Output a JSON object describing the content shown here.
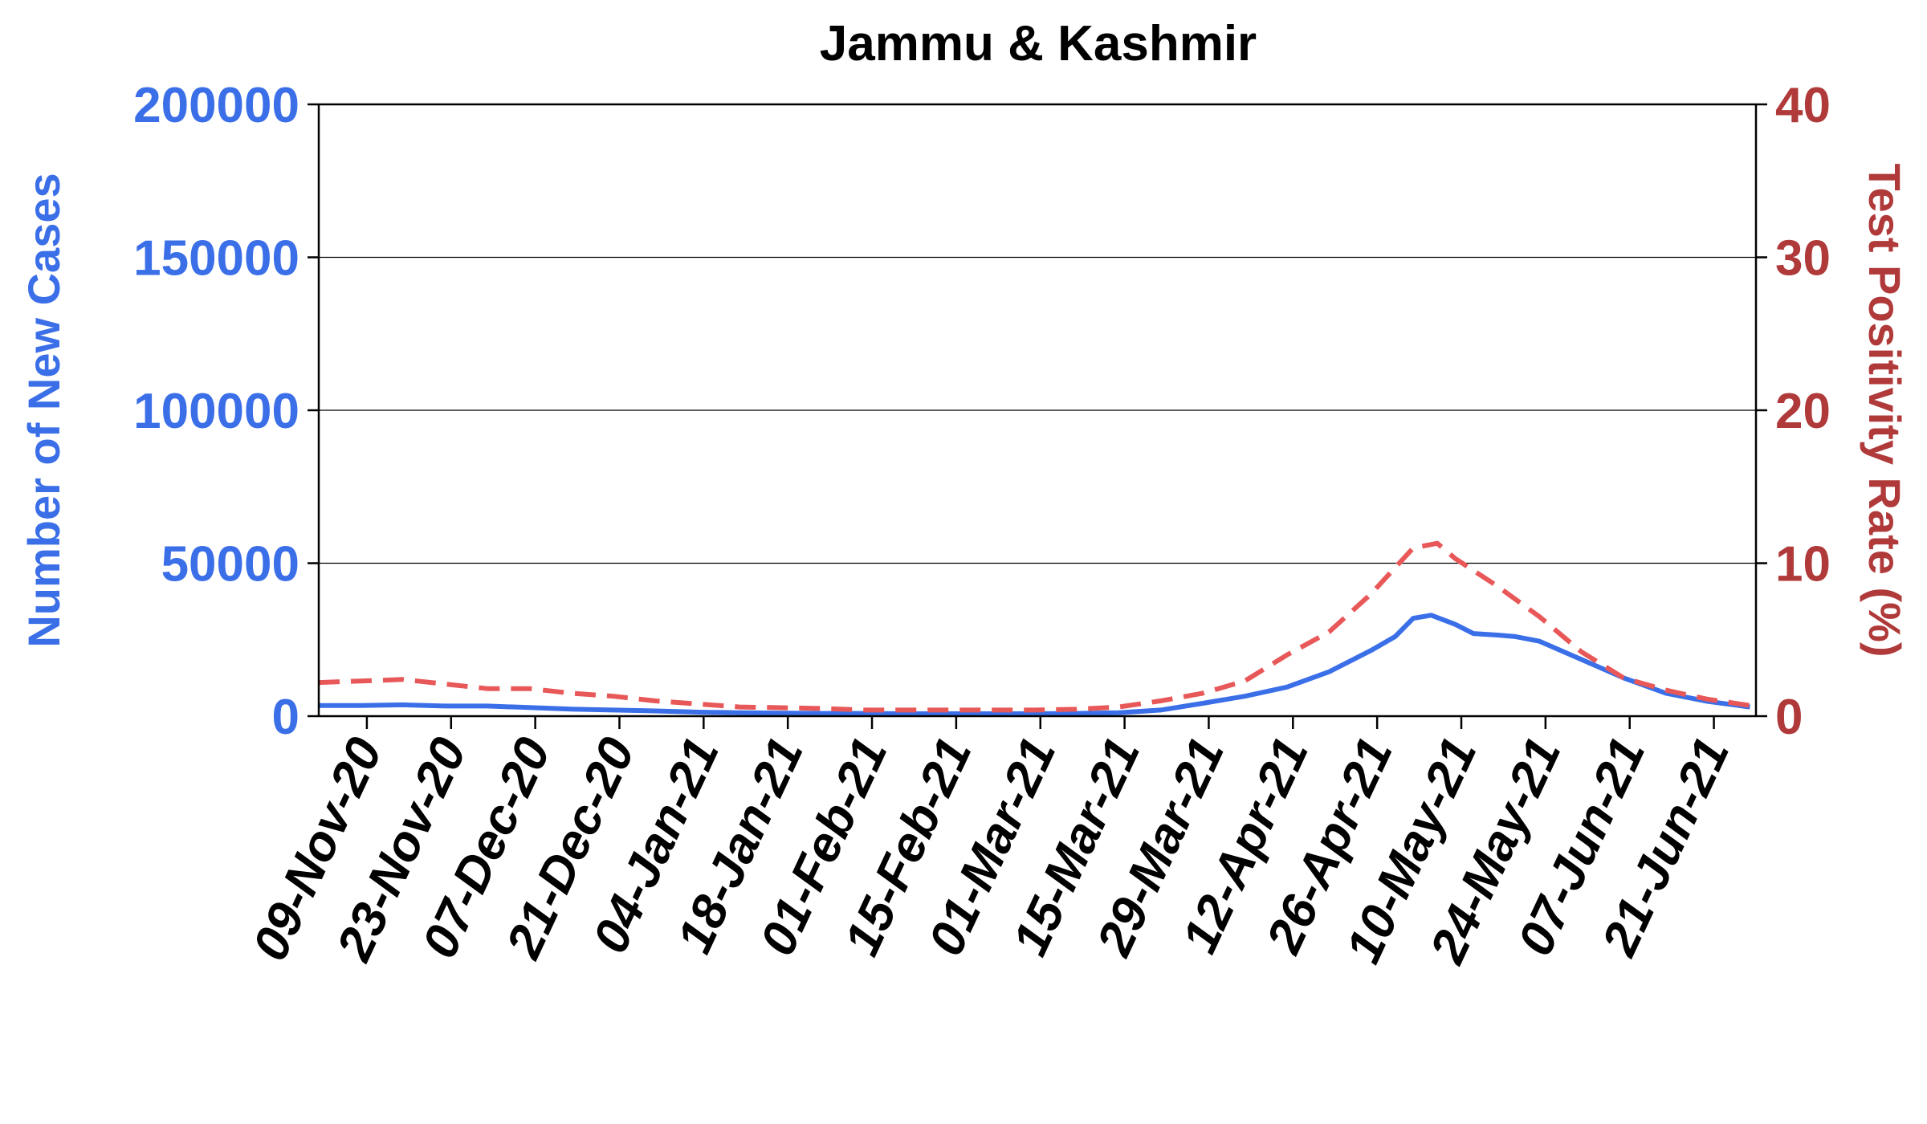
{
  "chart_data": {
    "type": "line",
    "title": "Jammu & Kashmir",
    "ylabel": "Number of New Cases",
    "y2label": "Test Positivity Rate (%)",
    "ylim": [
      0,
      200000
    ],
    "y2lim": [
      0,
      40
    ],
    "yticks": [
      "0",
      "50000",
      "100000",
      "150000",
      "200000"
    ],
    "y2ticks": [
      "0",
      "10",
      "20",
      "30",
      "40"
    ],
    "xticks": [
      "09-Nov-20",
      "23-Nov-20",
      "07-Dec-20",
      "21-Dec-20",
      "04-Jan-21",
      "18-Jan-21",
      "01-Feb-21",
      "15-Feb-21",
      "01-Mar-21",
      "15-Mar-21",
      "29-Mar-21",
      "12-Apr-21",
      "26-Apr-21",
      "10-May-21",
      "24-May-21",
      "07-Jun-21",
      "21-Jun-21"
    ],
    "grid": "horizontal",
    "colors": {
      "cases": "#3b6fe8",
      "tpr": "#e85858",
      "left_axis": "#3b6fe8",
      "right_axis": "#b03a3a"
    },
    "series": [
      {
        "axis": "left",
        "style": "solid",
        "x": [
          "2020-11-01",
          "2020-11-08",
          "2020-11-15",
          "2020-11-22",
          "2020-11-29",
          "2020-12-06",
          "2020-12-13",
          "2020-12-20",
          "2020-12-27",
          "2021-01-03",
          "2021-01-10",
          "2021-01-17",
          "2021-01-24",
          "2021-01-31",
          "2021-02-07",
          "2021-02-14",
          "2021-02-21",
          "2021-02-28",
          "2021-03-07",
          "2021-03-14",
          "2021-03-21",
          "2021-03-28",
          "2021-04-04",
          "2021-04-11",
          "2021-04-18",
          "2021-04-25",
          "2021-04-29",
          "2021-05-02",
          "2021-05-05",
          "2021-05-09",
          "2021-05-12",
          "2021-05-16",
          "2021-05-19",
          "2021-05-23",
          "2021-05-30",
          "2021-06-06",
          "2021-06-13",
          "2021-06-20",
          "2021-06-27"
        ],
        "values": [
          3500,
          3500,
          3700,
          3300,
          3300,
          2800,
          2300,
          2000,
          1700,
          1300,
          1100,
          1000,
          900,
          900,
          800,
          800,
          800,
          800,
          900,
          1100,
          2000,
          4200,
          6500,
          9500,
          14500,
          21500,
          26000,
          32000,
          33000,
          30000,
          27000,
          26500,
          26000,
          24500,
          18500,
          12500,
          7500,
          4800,
          3000
        ]
      },
      {
        "axis": "right",
        "style": "dashed",
        "x": [
          "2020-11-01",
          "2020-11-08",
          "2020-11-15",
          "2020-11-22",
          "2020-11-29",
          "2020-12-06",
          "2020-12-13",
          "2020-12-20",
          "2020-12-27",
          "2021-01-03",
          "2021-01-10",
          "2021-01-17",
          "2021-01-24",
          "2021-01-31",
          "2021-02-07",
          "2021-02-14",
          "2021-02-21",
          "2021-02-28",
          "2021-03-07",
          "2021-03-14",
          "2021-03-21",
          "2021-03-28",
          "2021-04-04",
          "2021-04-11",
          "2021-04-18",
          "2021-04-25",
          "2021-05-02",
          "2021-05-06",
          "2021-05-09",
          "2021-05-16",
          "2021-05-23",
          "2021-05-30",
          "2021-06-06",
          "2021-06-13",
          "2021-06-20",
          "2021-06-27"
        ],
        "values": [
          2.2,
          2.3,
          2.4,
          2.1,
          1.8,
          1.8,
          1.5,
          1.3,
          1.0,
          0.8,
          0.6,
          0.55,
          0.5,
          0.4,
          0.4,
          0.4,
          0.4,
          0.4,
          0.45,
          0.6,
          1.0,
          1.5,
          2.3,
          4.0,
          5.5,
          8.0,
          11.0,
          11.3,
          10.3,
          8.5,
          6.5,
          4.2,
          2.5,
          1.7,
          1.1,
          0.7
        ]
      }
    ]
  }
}
